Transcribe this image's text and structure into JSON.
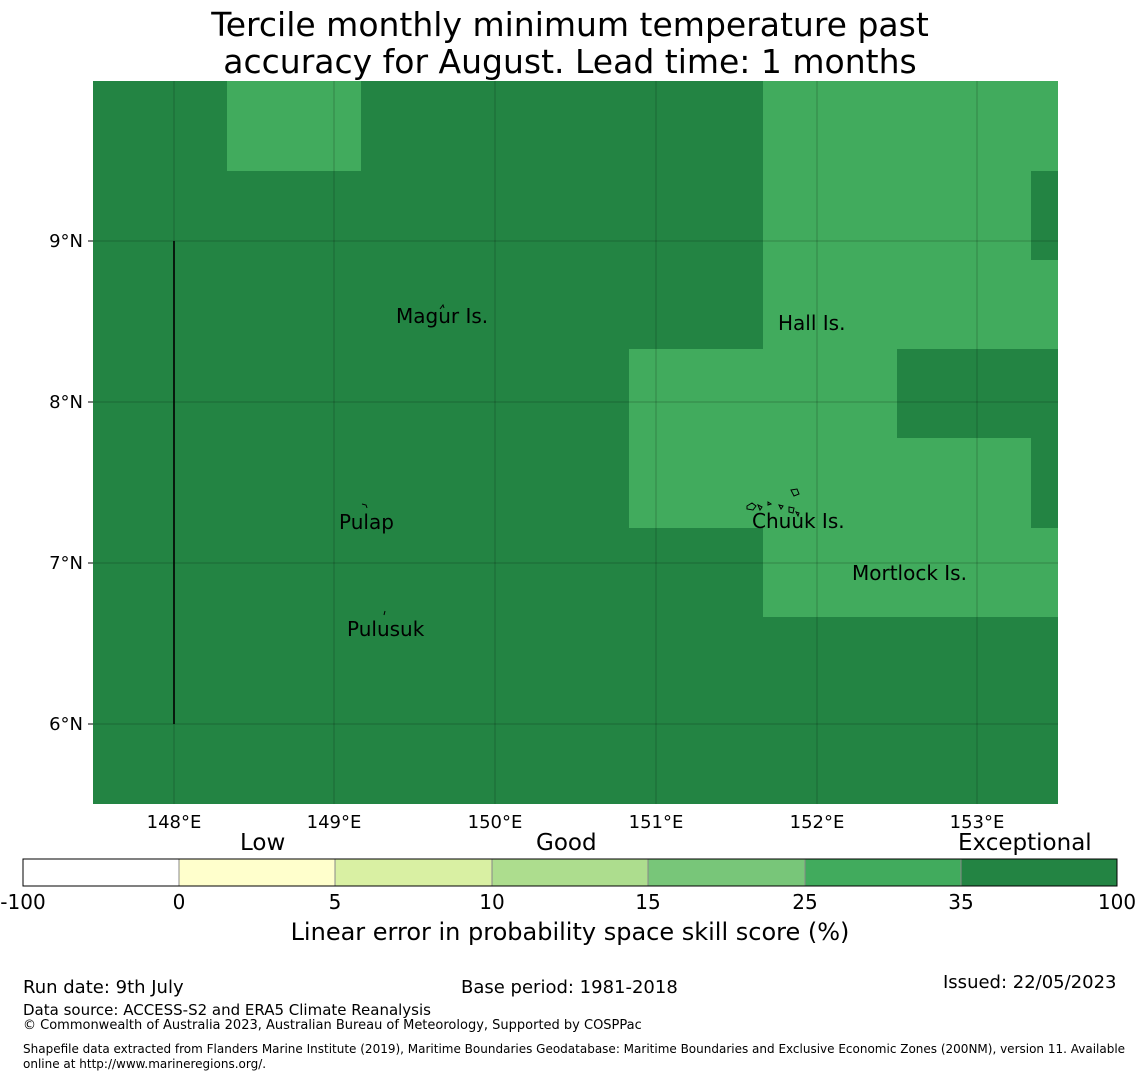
{
  "title_line1": "Tercile monthly minimum temperature past",
  "title_line2": "accuracy for August. Lead time: 1 months",
  "map": {
    "lat_ticks": [
      "9°N",
      "8°N",
      "7°N",
      "6°N"
    ],
    "lon_ticks": [
      "148°E",
      "149°E",
      "150°E",
      "151°E",
      "152°E",
      "153°E"
    ],
    "places": [
      "Magur Is.",
      "Hall Is.",
      "Pulap",
      "Chuuk Is.",
      "Mortlock Is.",
      "Pulusuk"
    ],
    "colors": {
      "exceptional": "#238443",
      "good_high": "#41ab5d"
    }
  },
  "colorbar": {
    "categories": [
      "Low",
      "Good",
      "Exceptional"
    ],
    "ticks": [
      "-100",
      "0",
      "5",
      "10",
      "15",
      "25",
      "35",
      "100"
    ],
    "colors": [
      "#ffffff",
      "#ffffcc",
      "#d9f0a3",
      "#addd8e",
      "#78c679",
      "#41ab5d",
      "#238443"
    ],
    "label": "Linear error in probability space skill score (%)"
  },
  "footer": {
    "run_date": "Run date: 9th July",
    "base_period": "Base period: 1981-2018",
    "issued": "Issued: 22/05/2023",
    "data_source": "Data source: ACCESS-S2 and ERA5 Climate Reanalysis",
    "copyright": "© Commonwealth of Australia 2023, Australian Bureau of Meteorology, Supported by COSPPac",
    "shapefile_line1": "Shapefile data extracted from Flanders Marine Institute (2019), Maritime Boundaries Geodatabase: Maritime Boundaries and Exclusive Economic Zones (200NM), version 11. Available",
    "shapefile_line2": "online at http://www.marineregions.org/."
  }
}
